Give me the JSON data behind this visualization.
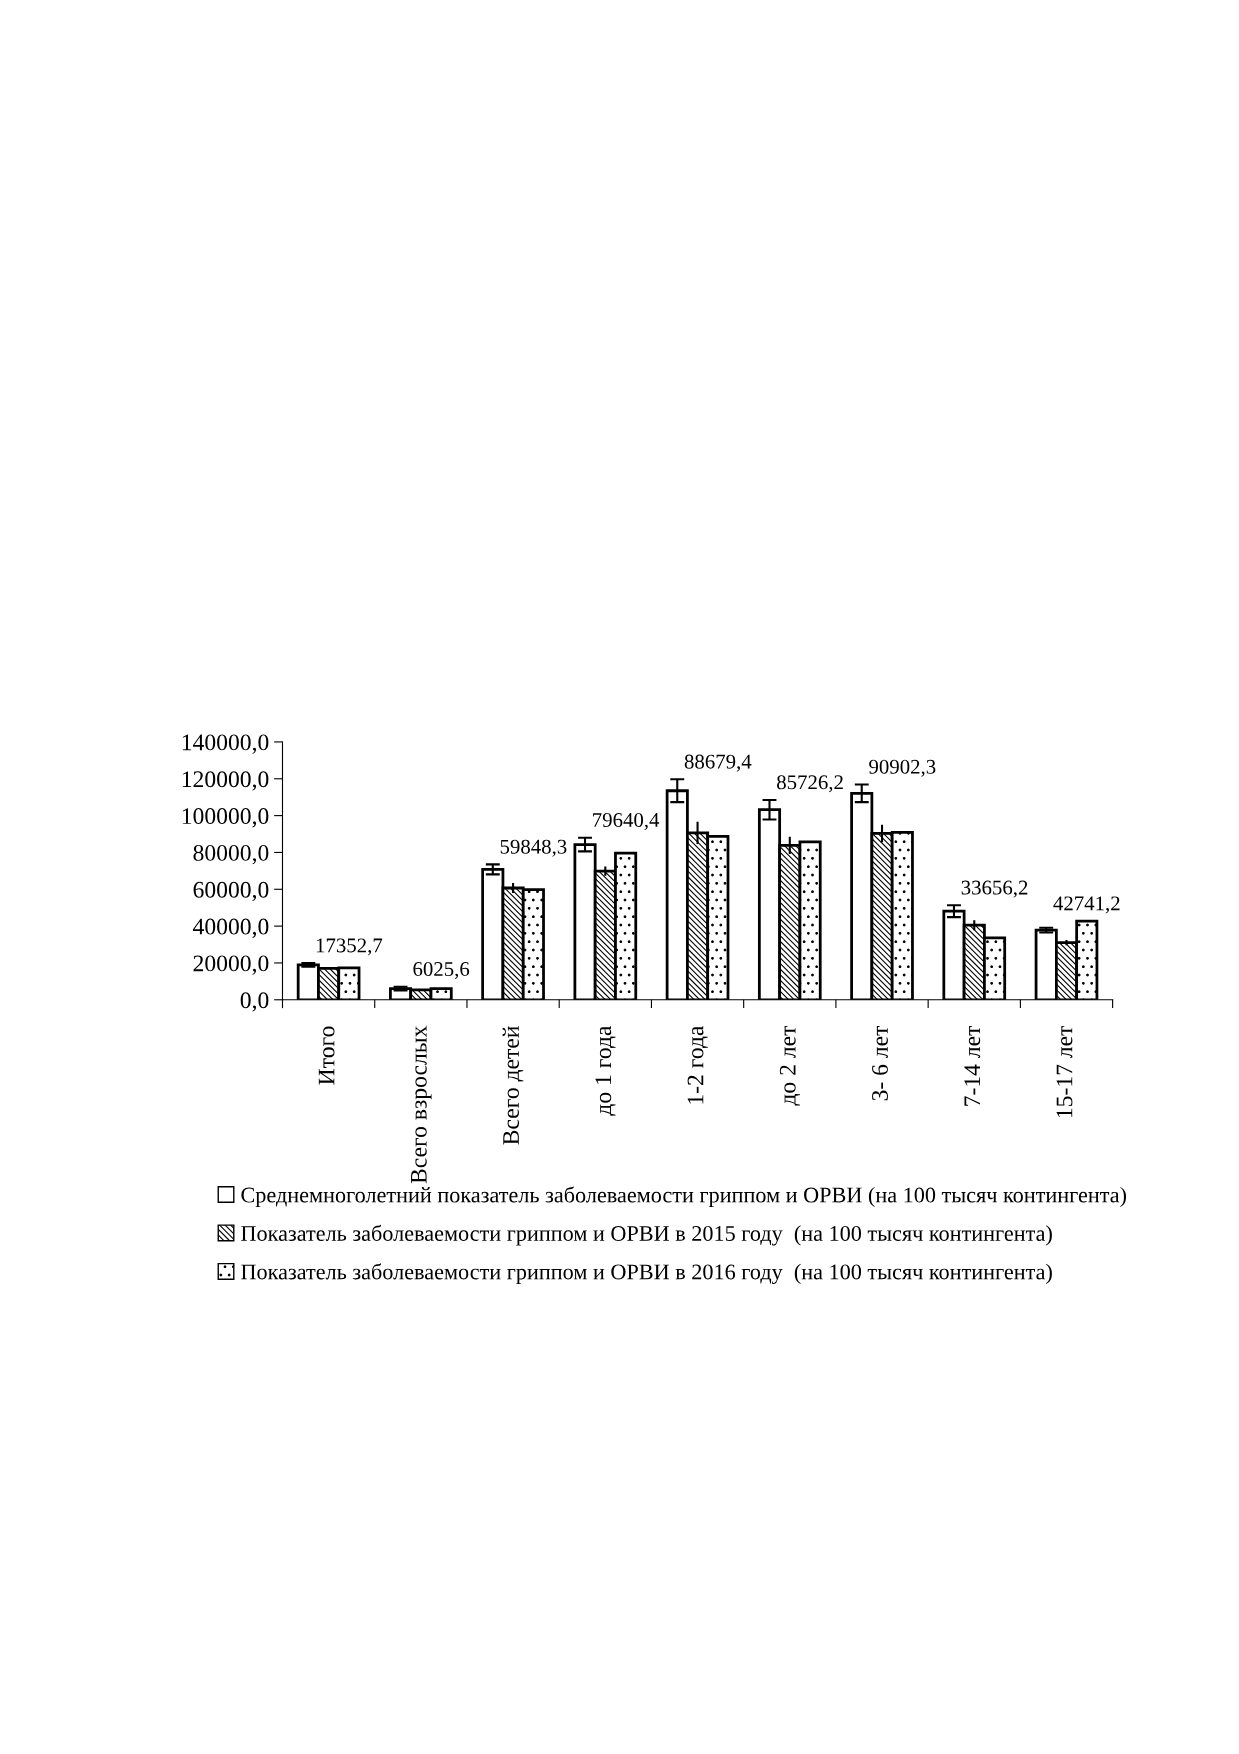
{
  "chart_data": {
    "type": "bar",
    "categories": [
      "Итого",
      "Всего взрослых",
      "Всего детей",
      "до 1 года",
      "1-2 года",
      "до 2 лет",
      "3- 6 лет",
      "7-14 лет",
      "15-17 лет"
    ],
    "series": [
      {
        "name": "Среднемноголетний показатель заболеваемости гриппом и ОРВИ (на 100 тысяч контингента)",
        "color": "#ffffff",
        "values": [
          18900,
          6100,
          70800,
          84300,
          113500,
          103200,
          112100,
          48100,
          37800
        ],
        "errors": [
          1000,
          1000,
          2700,
          3700,
          6200,
          5300,
          4800,
          3200,
          1300
        ]
      },
      {
        "name": "Показатель заболеваемости гриппом и ОРВИ в 2015 году  (на 100 тысяч контингента)",
        "color": "#000000",
        "values": [
          17100,
          5400,
          60700,
          69900,
          90600,
          83800,
          90300,
          40500,
          31000
        ],
        "errors": [
          null,
          null,
          2700,
          2500,
          6000,
          4700,
          4700,
          2700,
          1400
        ]
      },
      {
        "name": "Показатель заболеваемости гриппом и ОРВИ в 2016 году  (на 100 тысяч контингента)",
        "color": "#000000",
        "values": [
          17352.7,
          6025.6,
          59848.3,
          79640.4,
          88679.4,
          85726.2,
          90902.3,
          33656.2,
          42741.2
        ],
        "value_labels": [
          "17352,7",
          "6025,6",
          "59848,3",
          "79640,4",
          "88679,4",
          "85726,2",
          "90902,3",
          "33656,2",
          "42741,2"
        ]
      }
    ],
    "ylim": [
      0,
      140000
    ],
    "yticks": [
      {
        "value": 0,
        "label": "0,0"
      },
      {
        "value": 20000,
        "label": "20000,0"
      },
      {
        "value": 40000,
        "label": "40000,0"
      },
      {
        "value": 60000,
        "label": "60000,0"
      },
      {
        "value": 80000,
        "label": "80000,0"
      },
      {
        "value": 100000,
        "label": "100000,0"
      },
      {
        "value": 120000,
        "label": "120000,0"
      },
      {
        "value": 140000,
        "label": "140000,0"
      }
    ],
    "grid": false,
    "legend": "bottom"
  }
}
